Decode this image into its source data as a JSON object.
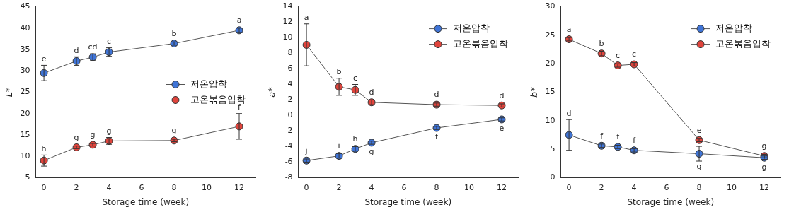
{
  "chart_data": [
    {
      "type": "line",
      "xlabel": "Storage time (week)",
      "ylabel": "L*",
      "x": [
        0,
        2,
        3,
        4,
        8,
        12
      ],
      "xlim": [
        -0.5,
        13
      ],
      "xticks": [
        0,
        2,
        4,
        6,
        8,
        10,
        12
      ],
      "ylim": [
        5,
        45
      ],
      "yticks": [
        5,
        10,
        15,
        20,
        25,
        30,
        35,
        40,
        45
      ],
      "grid": false,
      "legend": "right",
      "series": [
        {
          "name": "저온압착",
          "color": "#3f74d6",
          "marker": "circle",
          "values": [
            29.5,
            32.3,
            33.2,
            34.4,
            36.4,
            39.5
          ],
          "errors": [
            1.8,
            1.0,
            0.8,
            1.0,
            0.4,
            0.5
          ],
          "annotations": [
            "e",
            "d",
            "cd",
            "c",
            "b",
            "a"
          ]
        },
        {
          "name": "고온볶음압착",
          "color": "#e0443c",
          "marker": "circle",
          "values": [
            9.0,
            12.1,
            12.7,
            13.6,
            13.7,
            17.0
          ],
          "errors": [
            1.3,
            0.3,
            0.3,
            0.8,
            0.3,
            3.0
          ],
          "annotations": [
            "h",
            "g",
            "g",
            "g",
            "g",
            "f"
          ]
        }
      ]
    },
    {
      "type": "line",
      "xlabel": "Storage time (week)",
      "ylabel": "a*",
      "x": [
        0,
        2,
        3,
        4,
        8,
        12
      ],
      "xlim": [
        -0.5,
        13
      ],
      "xticks": [
        0,
        2,
        4,
        6,
        8,
        10,
        12
      ],
      "ylim": [
        -8,
        14
      ],
      "yticks": [
        -8,
        -6,
        -4,
        -2,
        0,
        2,
        4,
        6,
        8,
        10,
        12,
        14
      ],
      "grid": false,
      "legend": "upper right",
      "series": [
        {
          "name": "저온압착",
          "color": "#3f74d6",
          "marker": "circle",
          "values": [
            -5.8,
            -5.2,
            -4.3,
            -3.5,
            -1.6,
            -0.5
          ],
          "errors": [
            0.2,
            0.3,
            0.3,
            0.2,
            0.2,
            0.2
          ],
          "annotations": [
            "j",
            "i",
            "h",
            "g",
            "f",
            "e"
          ]
        },
        {
          "name": "고온볶음압착",
          "color": "#e0443c",
          "marker": "circle",
          "values": [
            9.1,
            3.7,
            3.3,
            1.7,
            1.4,
            1.3
          ],
          "errors": [
            2.7,
            1.1,
            0.7,
            0.3,
            0.2,
            0.2
          ],
          "annotations": [
            "a",
            "b",
            "c",
            "d",
            "d",
            "d"
          ]
        }
      ]
    },
    {
      "type": "line",
      "xlabel": "Storage time (week)",
      "ylabel": "b*",
      "x": [
        0,
        2,
        3,
        4,
        8,
        12
      ],
      "xlim": [
        -0.5,
        13
      ],
      "xticks": [
        0,
        2,
        4,
        6,
        8,
        10,
        12
      ],
      "ylim": [
        0,
        30
      ],
      "yticks": [
        0,
        5,
        10,
        15,
        20,
        25,
        30
      ],
      "grid": false,
      "legend": "upper right",
      "series": [
        {
          "name": "저온압착",
          "color": "#3f74d6",
          "marker": "circle",
          "values": [
            7.5,
            5.6,
            5.4,
            4.8,
            4.2,
            3.5
          ],
          "errors": [
            2.7,
            0.3,
            0.3,
            0.3,
            1.3,
            0.3
          ],
          "annotations": [
            "d",
            "f",
            "f",
            "f",
            "g",
            "g"
          ]
        },
        {
          "name": "고온볶음압착",
          "color": "#e0443c",
          "marker": "circle",
          "values": [
            24.3,
            21.8,
            19.7,
            19.9,
            6.6,
            3.8
          ],
          "errors": [
            0.3,
            0.4,
            0.3,
            0.3,
            0.3,
            0.3
          ],
          "annotations": [
            "a",
            "b",
            "c",
            "c",
            "e",
            "g"
          ]
        }
      ]
    }
  ]
}
